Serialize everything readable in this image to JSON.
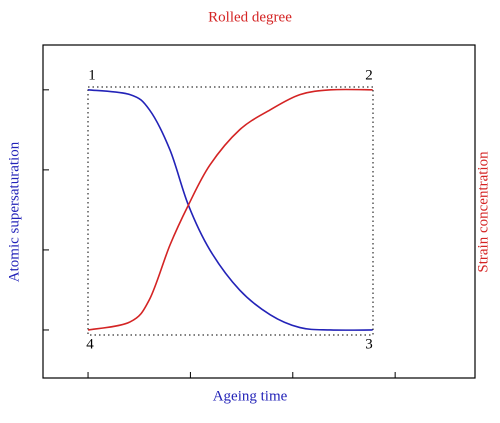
{
  "chart_data": {
    "type": "line",
    "top_label": "Rolled degree",
    "xlabel": "Ageing time",
    "ylabel": "Atomic supersaturation",
    "y2label": "Strain concentration",
    "annotations": [
      "1",
      "2",
      "3",
      "4"
    ],
    "x": [
      1,
      1.41,
      1.6,
      1.8,
      1.98,
      2.19,
      2.48,
      2.78,
      3.07,
      3.37,
      3.78
    ],
    "series": [
      {
        "color": "#2323b8",
        "values": [
          4,
          3.94,
          3.75,
          3.25,
          2.56,
          2,
          1.5,
          1.19,
          1.03,
          1,
          1
        ]
      },
      {
        "color": "#d42424",
        "values": [
          1,
          1.1,
          1.38,
          2.06,
          2.56,
          3.06,
          3.5,
          3.75,
          3.94,
          4,
          4
        ]
      }
    ],
    "xlim": [
      0.56,
      4.78
    ],
    "xticks": [
      1,
      2,
      3,
      4
    ],
    "ylim": [
      0.4,
      4.56
    ],
    "yticks": [
      1,
      2,
      3,
      4
    ],
    "grid": false
  }
}
